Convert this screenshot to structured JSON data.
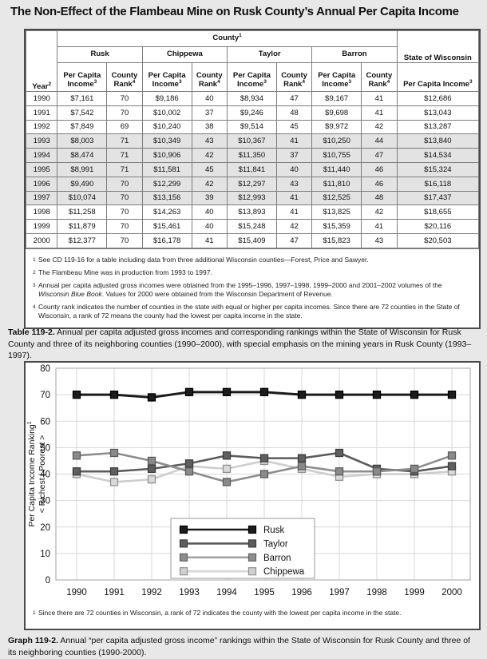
{
  "page": {
    "title": "The Non-Effect of the Flambeau Mine on Rusk County’s Annual Per Capita Income"
  },
  "table": {
    "header": {
      "county": "County",
      "county_sup": "1",
      "year": "Year",
      "year_sup": "2",
      "pci": "Per Capita Income",
      "pci_sup": "3",
      "rank": "County Rank",
      "rank_sup": "4",
      "state": "State of Wisconsin",
      "counties": [
        "Rusk",
        "Chippewa",
        "Taylor",
        "Barron"
      ]
    },
    "rows": [
      {
        "year": "1990",
        "cells": [
          "$7,161",
          "70",
          "$9,186",
          "40",
          "$8,934",
          "47",
          "$9,167",
          "41",
          "$12,686"
        ],
        "shaded": false
      },
      {
        "year": "1991",
        "cells": [
          "$7,542",
          "70",
          "$10,002",
          "37",
          "$9,246",
          "48",
          "$9,698",
          "41",
          "$13,043"
        ],
        "shaded": false
      },
      {
        "year": "1992",
        "cells": [
          "$7,849",
          "69",
          "$10,240",
          "38",
          "$9,514",
          "45",
          "$9,972",
          "42",
          "$13,287"
        ],
        "shaded": false
      },
      {
        "year": "1993",
        "cells": [
          "$8,003",
          "71",
          "$10,349",
          "43",
          "$10,367",
          "41",
          "$10,250",
          "44",
          "$13,840"
        ],
        "shaded": true
      },
      {
        "year": "1994",
        "cells": [
          "$8,474",
          "71",
          "$10,906",
          "42",
          "$11,350",
          "37",
          "$10,755",
          "47",
          "$14,534"
        ],
        "shaded": true
      },
      {
        "year": "1995",
        "cells": [
          "$8,991",
          "71",
          "$11,581",
          "45",
          "$11,841",
          "40",
          "$11,440",
          "46",
          "$15,324"
        ],
        "shaded": true
      },
      {
        "year": "1996",
        "cells": [
          "$9,490",
          "70",
          "$12,299",
          "42",
          "$12,297",
          "43",
          "$11,810",
          "46",
          "$16,118"
        ],
        "shaded": true
      },
      {
        "year": "1997",
        "cells": [
          "$10,074",
          "70",
          "$13,156",
          "39",
          "$12,993",
          "41",
          "$12,525",
          "48",
          "$17,437"
        ],
        "shaded": true
      },
      {
        "year": "1998",
        "cells": [
          "$11,258",
          "70",
          "$14,263",
          "40",
          "$13,893",
          "41",
          "$13,825",
          "42",
          "$18,655"
        ],
        "shaded": false
      },
      {
        "year": "1999",
        "cells": [
          "$11,879",
          "70",
          "$15,461",
          "40",
          "$15,248",
          "42",
          "$15,359",
          "41",
          "$20,116"
        ],
        "shaded": false
      },
      {
        "year": "2000",
        "cells": [
          "$12,377",
          "70",
          "$16,178",
          "41",
          "$15,409",
          "47",
          "$15,823",
          "43",
          "$20,503"
        ],
        "shaded": false
      }
    ]
  },
  "footnotes": [
    {
      "sup": "1",
      "parts": [
        {
          "text": "See CD 119-16 for a table including data from three additional Wisconsin counties—Forest, Price and Sawyer.",
          "italic": false
        }
      ]
    },
    {
      "sup": "2",
      "parts": [
        {
          "text": "The Flambeau Mine was in production from 1993 to 1997.",
          "italic": false
        }
      ]
    },
    {
      "sup": "3",
      "parts": [
        {
          "text": "Annual per capita adjusted gross incomes were obtained from the 1995–1996, 1997–1998, 1999–2000 and 2001–2002 volumes of the ",
          "italic": false
        },
        {
          "text": "Wisconsin Blue Book",
          "italic": true
        },
        {
          "text": ".  Values for 2000 were obtained from the Wisconsin Department of Revenue.",
          "italic": false
        }
      ]
    },
    {
      "sup": "4",
      "parts": [
        {
          "text": "County rank indicates the number of counties in the state with equal or higher per capita incomes.  Since there are 72 counties in the State of Wisconsin, a rank of 72 means the county had the lowest per capita income in the state.",
          "italic": false
        }
      ]
    }
  ],
  "table_caption": {
    "label": "Table 119-2.",
    "text": "Annual per capita adjusted gross incomes and corresponding rankings within the State of Wisconsin for Rusk County and three of its neighboring counties (1990–2000), with special emphasis on the mining years in Rusk County (1993–1997)."
  },
  "chart_data": {
    "type": "line",
    "x": [
      1990,
      1991,
      1992,
      1993,
      1994,
      1995,
      1996,
      1997,
      1998,
      1999,
      2000
    ],
    "series": [
      {
        "name": "Rusk",
        "line": "#1a1a1a",
        "mfill": "#1c1c1c",
        "mstroke": "#000000",
        "values": [
          70,
          70,
          69,
          71,
          71,
          71,
          70,
          70,
          70,
          70,
          70
        ]
      },
      {
        "name": "Taylor",
        "line": "#8e8e8e",
        "mfill": "#8a8a8a",
        "mstroke": "#5c5c5c",
        "values": [
          47,
          48,
          45,
          41,
          37,
          40,
          43,
          41,
          41,
          42,
          47
        ]
      },
      {
        "name": "Barron",
        "line": "#5c5c5c",
        "mfill": "#5f5f5f",
        "mstroke": "#3e3e3e",
        "values": [
          41,
          41,
          42,
          44,
          47,
          46,
          46,
          48,
          42,
          41,
          43
        ]
      },
      {
        "name": "Chippewa",
        "line": "#cecece",
        "mfill": "#dadada",
        "mstroke": "#909090",
        "values": [
          40,
          37,
          38,
          43,
          42,
          45,
          42,
          39,
          40,
          40,
          41
        ]
      }
    ],
    "legend": [
      {
        "label": "Rusk",
        "line": "#1a1a1a",
        "fill": "#1c1c1c",
        "stroke": "#000000"
      },
      {
        "label": "Taylor",
        "line": "#5a5a5a",
        "fill": "#5d5d5d",
        "stroke": "#3e3e3e"
      },
      {
        "label": "Barron",
        "line": "#a3a3a3",
        "fill": "#8d8d8d",
        "stroke": "#616161"
      },
      {
        "label": "Chippewa",
        "line": "#d6d6d6",
        "fill": "#d0d0d0",
        "stroke": "#8f8f8f"
      }
    ],
    "ylim": [
      0,
      80
    ],
    "ytick_step": 10,
    "ylabel_line1": "Per Capita Income Ranking",
    "ylabel_sup": "1",
    "ylabel_line2": "< Richest | Poorest >",
    "grid": true,
    "legend_position": "inside bottom-left"
  },
  "chart_footnote": {
    "sup": "1",
    "parts": [
      {
        "text": "Since there are 72 counties in Wisconsin, a rank of 72 indicates the county with the lowest per capita income in the state.",
        "italic": false
      }
    ]
  },
  "graph_caption": {
    "label": "Graph 119-2.",
    "text": "Annual “per capita adjusted gross income” rankings within the State of Wisconsin for Rusk County and three of its neighboring counties (1990-2000)."
  }
}
